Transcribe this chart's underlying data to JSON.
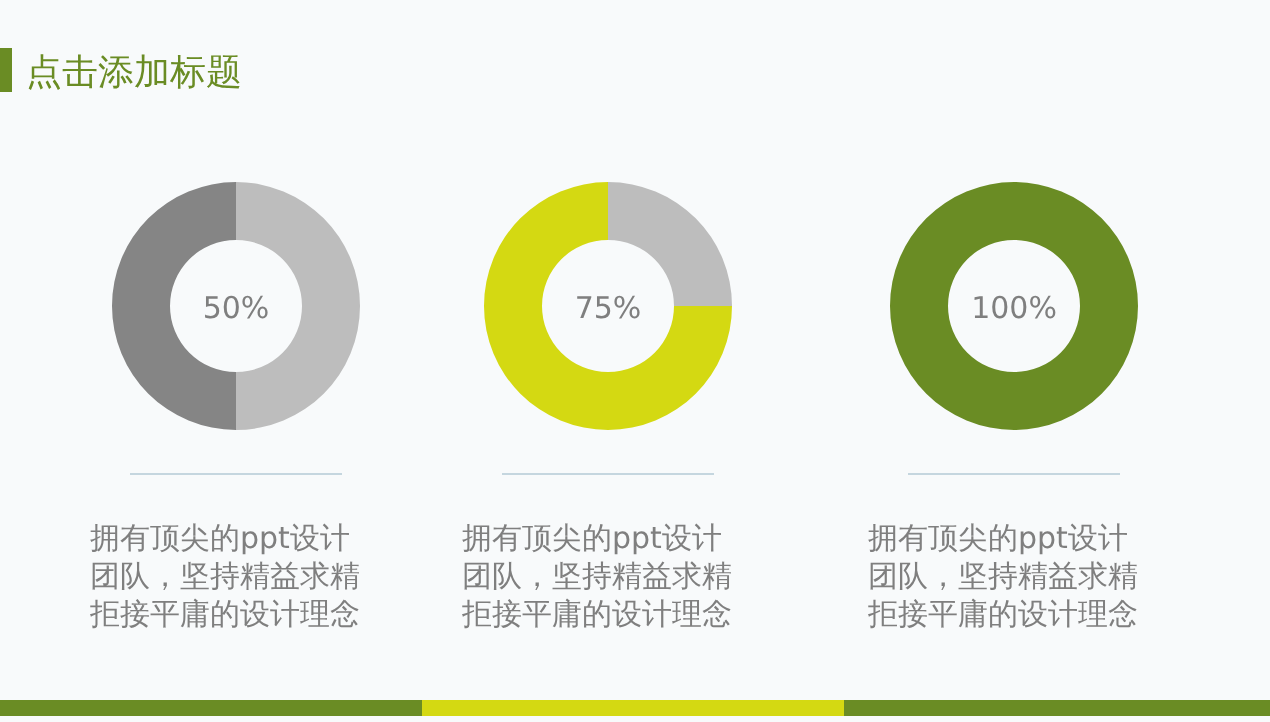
{
  "chart_data": [
    {
      "type": "donut",
      "title": "点击添加标题",
      "categories": [
        null,
        null
      ],
      "values": [
        50,
        50
      ],
      "colors": [
        "#bdbdbd",
        "#858585"
      ],
      "annotations": [
        "50%",
        "拥有顶尖的ppt设计团队，坚持精益求精拒接平庸的设计理念"
      ]
    },
    {
      "type": "donut",
      "categories": [
        null,
        null
      ],
      "values": [
        25,
        75
      ],
      "colors": [
        "#bdbdbd",
        "#d4d912"
      ],
      "annotations": [
        "75%",
        "拥有顶尖的ppt设计团队，坚持精益求精拒接平庸的设计理念"
      ]
    },
    {
      "type": "donut",
      "categories": [
        null
      ],
      "values": [
        100
      ],
      "colors": [
        "#6a8c24"
      ],
      "annotations": [
        "100%",
        "拥有顶尖的ppt设计团队，坚持精益求精拒接平庸的设计理念"
      ]
    }
  ]
}
